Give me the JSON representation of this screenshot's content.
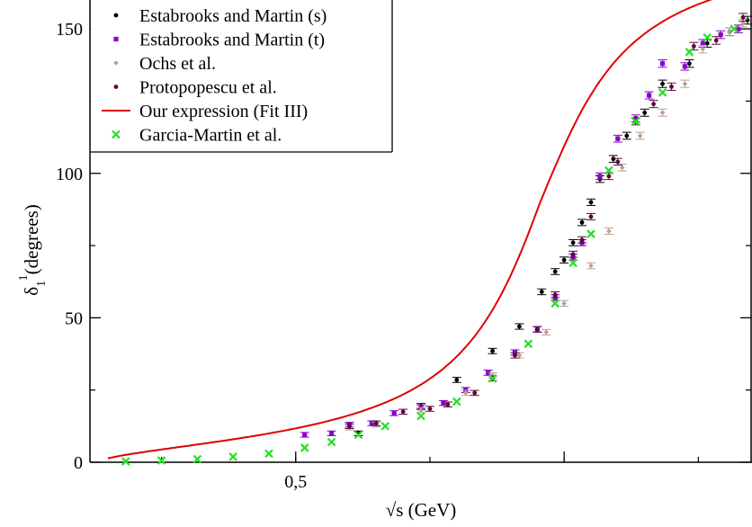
{
  "chart_data": {
    "type": "scatter",
    "xlabel": "√s (GeV)",
    "ylabel": "δ1 1(degrees)",
    "ylabel_main": "δ",
    "ylabel_sub": "1",
    "ylabel_sup": "1",
    "ylabel_unit": "(degrees)",
    "xlim": [
      0.27,
      1.01
    ],
    "ylim": [
      0,
      160
    ],
    "x_ticks": [
      {
        "value": 0.5,
        "label": "0,5"
      },
      {
        "value": 0.8,
        "label": ""
      }
    ],
    "y_ticks": [
      {
        "value": 0,
        "label": "0"
      },
      {
        "value": 50,
        "label": "50"
      },
      {
        "value": 100,
        "label": "100"
      },
      {
        "value": 150,
        "label": "150"
      }
    ],
    "legend_position": "top-left",
    "grid": false,
    "series": [
      {
        "name": "Estabrooks and Martin (s)",
        "marker": "dot",
        "color": "#000000",
        "points": [
          [
            0.57,
            10.0
          ],
          [
            0.64,
            19.5
          ],
          [
            0.68,
            28.5
          ],
          [
            0.72,
            38.5
          ],
          [
            0.75,
            47.0
          ],
          [
            0.775,
            59.0
          ],
          [
            0.79,
            66.0
          ],
          [
            0.8,
            70.0
          ],
          [
            0.81,
            76.0
          ],
          [
            0.82,
            83.0
          ],
          [
            0.83,
            90.0
          ],
          [
            0.84,
            98.0
          ],
          [
            0.855,
            105.0
          ],
          [
            0.87,
            113.0
          ],
          [
            0.89,
            121.0
          ],
          [
            0.91,
            131.0
          ],
          [
            0.94,
            138.0
          ],
          [
            0.96,
            145.0
          ],
          [
            0.985,
            149.0
          ],
          [
            1.005,
            153.0
          ]
        ]
      },
      {
        "name": "Estabrooks and Martin (t)",
        "marker": "square",
        "color": "#8b00c8",
        "points": [
          [
            0.51,
            9.5
          ],
          [
            0.54,
            10.0
          ],
          [
            0.56,
            13.0
          ],
          [
            0.585,
            13.5
          ],
          [
            0.61,
            17.0
          ],
          [
            0.64,
            19.0
          ],
          [
            0.665,
            20.5
          ],
          [
            0.69,
            25.0
          ],
          [
            0.715,
            31.0
          ],
          [
            0.745,
            38.0
          ],
          [
            0.77,
            46.0
          ],
          [
            0.79,
            57.0
          ],
          [
            0.81,
            71.0
          ],
          [
            0.82,
            76.0
          ],
          [
            0.84,
            99.0
          ],
          [
            0.86,
            112.0
          ],
          [
            0.88,
            119.0
          ],
          [
            0.895,
            127.0
          ],
          [
            0.91,
            138.0
          ],
          [
            0.935,
            137.0
          ],
          [
            0.955,
            145.0
          ],
          [
            0.975,
            148.0
          ],
          [
            0.995,
            150.0
          ]
        ]
      },
      {
        "name": "Ochs et al.",
        "marker": "diamond",
        "color": "#b8a090",
        "points": [
          [
            0.56,
            12.0
          ],
          [
            0.59,
            13.0
          ],
          [
            0.64,
            18.0
          ],
          [
            0.69,
            24.0
          ],
          [
            0.72,
            30.0
          ],
          [
            0.75,
            37.0
          ],
          [
            0.78,
            45.0
          ],
          [
            0.8,
            55.0
          ],
          [
            0.83,
            68.0
          ],
          [
            0.85,
            80.0
          ],
          [
            0.865,
            102.0
          ],
          [
            0.885,
            113.0
          ],
          [
            0.91,
            121.0
          ],
          [
            0.935,
            131.0
          ],
          [
            0.955,
            143.0
          ],
          [
            0.985,
            149.0
          ],
          [
            1.0,
            152.0
          ]
        ]
      },
      {
        "name": "Protopopescu et al.",
        "marker": "dot",
        "color": "#5a0a3c",
        "points": [
          [
            0.56,
            12.5
          ],
          [
            0.59,
            13.5
          ],
          [
            0.62,
            17.5
          ],
          [
            0.65,
            18.5
          ],
          [
            0.67,
            20.0
          ],
          [
            0.7,
            24.0
          ],
          [
            0.72,
            29.0
          ],
          [
            0.745,
            37.0
          ],
          [
            0.77,
            46.0
          ],
          [
            0.79,
            58.0
          ],
          [
            0.81,
            72.0
          ],
          [
            0.82,
            77.0
          ],
          [
            0.83,
            85.0
          ],
          [
            0.85,
            99.0
          ],
          [
            0.86,
            104.0
          ],
          [
            0.88,
            118.0
          ],
          [
            0.9,
            124.0
          ],
          [
            0.92,
            130.0
          ],
          [
            0.945,
            144.0
          ],
          [
            0.97,
            146.0
          ],
          [
            1.0,
            154.0
          ]
        ]
      },
      {
        "name": "Our expression (Fit III)",
        "marker": "line",
        "color": "#e00000",
        "curve_mass": 0.7732,
        "curve_width": 0.155,
        "curve_xmin": 0.29
      },
      {
        "name": "Garcia-Martin et al.",
        "marker": "x",
        "color": "#22e022",
        "points": [
          [
            0.31,
            0.3
          ],
          [
            0.35,
            0.6
          ],
          [
            0.39,
            1.1
          ],
          [
            0.43,
            1.9
          ],
          [
            0.47,
            3.0
          ],
          [
            0.51,
            5.0
          ],
          [
            0.54,
            7.0
          ],
          [
            0.57,
            9.5
          ],
          [
            0.6,
            12.5
          ],
          [
            0.64,
            16.0
          ],
          [
            0.68,
            21.0
          ],
          [
            0.72,
            29.0
          ],
          [
            0.76,
            41.0
          ],
          [
            0.79,
            55.0
          ],
          [
            0.81,
            69.0
          ],
          [
            0.83,
            79.0
          ],
          [
            0.85,
            101.0
          ],
          [
            0.88,
            118.0
          ],
          [
            0.91,
            128.0
          ],
          [
            0.94,
            142.0
          ],
          [
            0.96,
            147.0
          ],
          [
            0.99,
            150.0
          ]
        ]
      }
    ]
  }
}
